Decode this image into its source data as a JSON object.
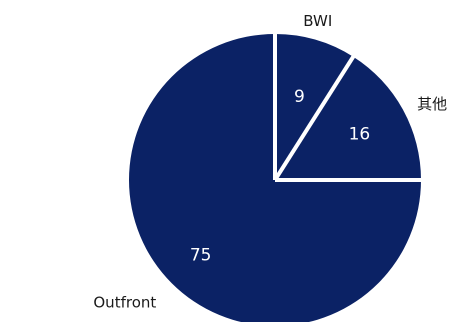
{
  "chart_data": {
    "type": "pie",
    "categories": [
      "BWI",
      "其他",
      "Outfront"
    ],
    "values": [
      9,
      16,
      75
    ],
    "data_labels": [
      "9",
      "16",
      "75"
    ],
    "start_angle_deg": 90,
    "direction": "clockwise",
    "slice_color": "#0b2265",
    "separator_color": "#ffffff",
    "legend": "none"
  }
}
